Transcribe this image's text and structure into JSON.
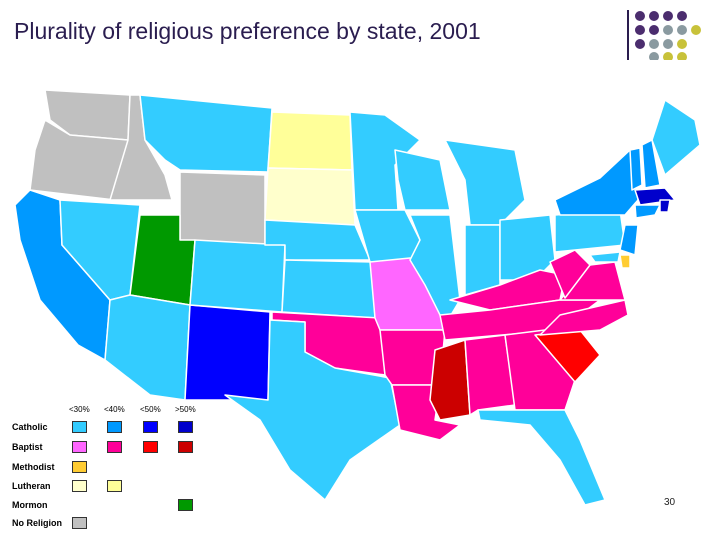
{
  "title": "Plurality of religious preference by state, 2001",
  "page_number": "30",
  "legend": {
    "headers": [
      "<30%",
      "<40%",
      "<50%",
      ">50%"
    ],
    "rows": [
      {
        "label": "Catholic",
        "colors": [
          "#33ccff",
          "#0099ff",
          "#0000ff",
          "#0000cc"
        ]
      },
      {
        "label": "Baptist",
        "colors": [
          "#ff66ff",
          "#ff0099",
          "#ff0000",
          "#cc0000"
        ]
      },
      {
        "label": "Methodist",
        "colors": [
          "#ffcc33",
          null,
          null,
          null
        ]
      },
      {
        "label": "Lutheran",
        "colors": [
          "#ffffcc",
          "#ffff99",
          null,
          null
        ]
      },
      {
        "label": "Mormon",
        "colors": [
          null,
          null,
          null,
          "#009900"
        ]
      },
      {
        "label": "No Religion",
        "colors": [
          "#c0c0c0",
          null,
          null,
          null
        ]
      }
    ]
  },
  "colors": {
    "catholic_lt30": "#33ccff",
    "catholic_lt40": "#0099ff",
    "catholic_lt50": "#0000ff",
    "catholic_gt50": "#0000cc",
    "baptist_lt30": "#ff66ff",
    "baptist_lt40": "#ff0099",
    "baptist_lt50": "#ff0000",
    "baptist_gt50": "#cc0000",
    "methodist": "#ffcc33",
    "lutheran_lt30": "#ffffcc",
    "lutheran_lt40": "#ffff99",
    "mormon": "#009900",
    "no_religion": "#c0c0c0"
  }
}
